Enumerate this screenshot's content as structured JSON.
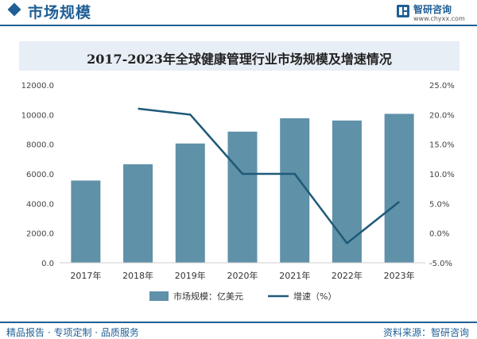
{
  "header": {
    "title": "市场规模"
  },
  "brand": {
    "name": "智研咨询",
    "url": "www.chyxx.com"
  },
  "footer": {
    "left": "精品报告 · 专项定制 · 品质服务",
    "right": "资料来源：智研咨询"
  },
  "chart_data": {
    "type": "bar",
    "title": "2017-2023年全球健康管理行业市场规模及增速情况",
    "categories": [
      "2017年",
      "2018年",
      "2019年",
      "2020年",
      "2021年",
      "2022年",
      "2023年"
    ],
    "series": [
      {
        "name": "市场规模：亿美元",
        "type": "bar",
        "axis": "left",
        "color": "#5f91a8",
        "values": [
          5550,
          6650,
          8050,
          8850,
          9750,
          9600,
          10050
        ]
      },
      {
        "name": "增速（%）",
        "type": "line",
        "axis": "right",
        "color": "#1f5a78",
        "values": [
          null,
          21.0,
          20.0,
          10.0,
          10.0,
          -1.7,
          5.3
        ]
      }
    ],
    "y_left": {
      "ticks": [
        "12000.0",
        "10000.0",
        "8000.0",
        "6000.0",
        "4000.0",
        "2000.0",
        "0.0"
      ],
      "ylim": [
        0,
        12000
      ]
    },
    "y_right": {
      "ticks": [
        "25.0%",
        "20.0%",
        "15.0%",
        "10.0%",
        "5.0%",
        "0.0%",
        "-5.0%"
      ],
      "ylim": [
        -5,
        25
      ]
    },
    "legend_position": "bottom",
    "grid": false
  }
}
